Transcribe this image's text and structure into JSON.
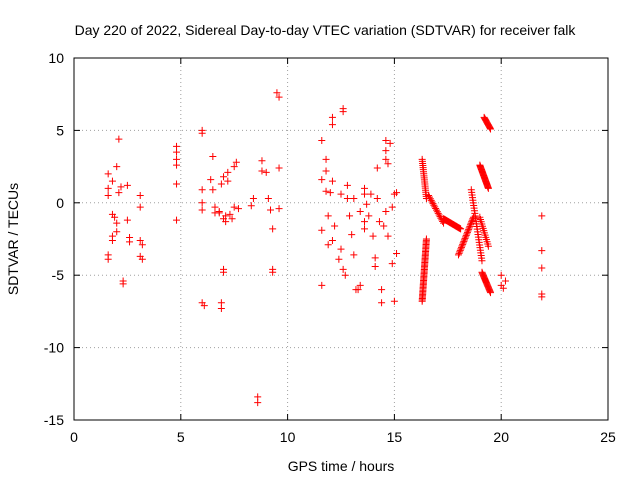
{
  "chart_data": {
    "type": "scatter",
    "title": "Day 220 of 2022, Sidereal Day-to-day VTEC variation (SDTVAR) for receiver falk",
    "xlabel": "GPS time / hours",
    "ylabel": "SDTVAR / TECUs",
    "xlim": [
      0,
      25
    ],
    "ylim": [
      -15,
      10
    ],
    "xticks": [
      0,
      5,
      10,
      15,
      20,
      25
    ],
    "yticks": [
      -15,
      -10,
      -5,
      0,
      5,
      10
    ],
    "grid": true,
    "marker": "plus",
    "color": "#ff0000",
    "series": [
      {
        "name": "SDTVAR",
        "points": [
          [
            1.6,
            2.0
          ],
          [
            1.6,
            1.0
          ],
          [
            1.6,
            0.5
          ],
          [
            1.6,
            -3.6
          ],
          [
            1.6,
            -3.9
          ],
          [
            1.8,
            1.5
          ],
          [
            1.8,
            -0.8
          ],
          [
            1.8,
            -2.3
          ],
          [
            1.8,
            -2.6
          ],
          [
            1.9,
            -1.0
          ],
          [
            2.0,
            2.5
          ],
          [
            2.0,
            -1.4
          ],
          [
            2.0,
            -2.0
          ],
          [
            2.1,
            4.4
          ],
          [
            2.1,
            0.7
          ],
          [
            2.2,
            1.1
          ],
          [
            2.3,
            -5.4
          ],
          [
            2.3,
            -5.6
          ],
          [
            2.5,
            1.2
          ],
          [
            2.5,
            -1.2
          ],
          [
            2.6,
            -2.4
          ],
          [
            2.6,
            -2.7
          ],
          [
            3.1,
            0.5
          ],
          [
            3.1,
            -0.3
          ],
          [
            3.1,
            -2.6
          ],
          [
            3.1,
            -3.7
          ],
          [
            3.2,
            -2.9
          ],
          [
            3.2,
            -3.9
          ],
          [
            4.8,
            3.9
          ],
          [
            4.8,
            3.5
          ],
          [
            4.8,
            3.0
          ],
          [
            4.8,
            2.6
          ],
          [
            4.8,
            1.3
          ],
          [
            4.8,
            -1.2
          ],
          [
            6.0,
            5.0
          ],
          [
            6.0,
            4.8
          ],
          [
            6.0,
            0.9
          ],
          [
            6.0,
            0.0
          ],
          [
            6.0,
            -0.5
          ],
          [
            6.0,
            -6.9
          ],
          [
            6.1,
            -7.1
          ],
          [
            6.4,
            1.6
          ],
          [
            6.5,
            3.2
          ],
          [
            6.5,
            0.9
          ],
          [
            6.6,
            -0.3
          ],
          [
            6.6,
            -0.7
          ],
          [
            6.8,
            -0.7
          ],
          [
            6.8,
            -0.6
          ],
          [
            6.9,
            1.3
          ],
          [
            6.9,
            -6.9
          ],
          [
            6.9,
            -7.3
          ],
          [
            7.0,
            -1.1
          ],
          [
            7.0,
            -4.6
          ],
          [
            7.0,
            -4.8
          ],
          [
            7.0,
            1.8
          ],
          [
            7.1,
            -0.9
          ],
          [
            7.1,
            -1.3
          ],
          [
            7.2,
            2.1
          ],
          [
            7.2,
            1.5
          ],
          [
            7.3,
            -0.8
          ],
          [
            7.4,
            -1.1
          ],
          [
            7.5,
            2.5
          ],
          [
            7.5,
            -0.3
          ],
          [
            7.6,
            2.8
          ],
          [
            7.7,
            -0.4
          ],
          [
            8.3,
            -0.2
          ],
          [
            8.4,
            0.3
          ],
          [
            8.6,
            -13.4
          ],
          [
            8.6,
            -13.8
          ],
          [
            8.8,
            2.9
          ],
          [
            8.8,
            2.2
          ],
          [
            9.0,
            2.1
          ],
          [
            9.1,
            0.3
          ],
          [
            9.2,
            -0.5
          ],
          [
            9.3,
            -1.8
          ],
          [
            9.3,
            -4.8
          ],
          [
            9.3,
            -4.6
          ],
          [
            9.5,
            7.6
          ],
          [
            9.6,
            7.3
          ],
          [
            9.6,
            2.4
          ],
          [
            9.6,
            -0.4
          ],
          [
            11.6,
            4.3
          ],
          [
            11.6,
            1.6
          ],
          [
            11.6,
            -1.9
          ],
          [
            11.6,
            -5.7
          ],
          [
            11.8,
            3.0
          ],
          [
            11.8,
            2.2
          ],
          [
            11.8,
            0.8
          ],
          [
            11.9,
            -0.9
          ],
          [
            11.9,
            -2.9
          ],
          [
            12.0,
            0.7
          ],
          [
            12.1,
            5.9
          ],
          [
            12.1,
            5.4
          ],
          [
            12.1,
            1.5
          ],
          [
            12.1,
            -2.6
          ],
          [
            12.2,
            -1.6
          ],
          [
            12.4,
            -3.9
          ],
          [
            12.5,
            0.6
          ],
          [
            12.5,
            -3.2
          ],
          [
            12.6,
            6.5
          ],
          [
            12.6,
            6.3
          ],
          [
            12.6,
            -4.6
          ],
          [
            12.7,
            -5.0
          ],
          [
            12.8,
            1.2
          ],
          [
            12.8,
            0.3
          ],
          [
            12.9,
            -0.9
          ],
          [
            13.0,
            -2.2
          ],
          [
            13.1,
            0.3
          ],
          [
            13.1,
            -3.6
          ],
          [
            13.2,
            -6.0
          ],
          [
            13.3,
            -6.0
          ],
          [
            13.4,
            -0.6
          ],
          [
            13.4,
            -5.7
          ],
          [
            13.6,
            1.0
          ],
          [
            13.6,
            0.6
          ],
          [
            13.6,
            -1.3
          ],
          [
            13.6,
            -1.8
          ],
          [
            13.7,
            -0.1
          ],
          [
            13.8,
            -0.9
          ],
          [
            13.9,
            0.6
          ],
          [
            14.0,
            -2.3
          ],
          [
            14.1,
            -3.8
          ],
          [
            14.1,
            -4.4
          ],
          [
            14.2,
            2.4
          ],
          [
            14.2,
            0.3
          ],
          [
            14.3,
            -1.3
          ],
          [
            14.4,
            -6.0
          ],
          [
            14.4,
            -6.9
          ],
          [
            14.5,
            -1.6
          ],
          [
            14.6,
            4.3
          ],
          [
            14.6,
            3.6
          ],
          [
            14.6,
            3.0
          ],
          [
            14.6,
            -0.6
          ],
          [
            14.7,
            2.7
          ],
          [
            14.7,
            -2.3
          ],
          [
            14.8,
            4.1
          ],
          [
            14.9,
            -0.3
          ],
          [
            14.9,
            -4.2
          ],
          [
            15.0,
            0.6
          ],
          [
            15.0,
            -6.8
          ],
          [
            15.1,
            -3.5
          ],
          [
            15.1,
            0.7
          ],
          [
            20.0,
            -5.0
          ],
          [
            20.1,
            -5.9
          ],
          [
            20.2,
            -5.4
          ],
          [
            20.0,
            -5.7
          ],
          [
            21.9,
            -0.9
          ],
          [
            21.9,
            -3.3
          ],
          [
            21.9,
            -4.5
          ],
          [
            21.9,
            -6.3
          ],
          [
            21.9,
            -6.5
          ]
        ],
        "clusters": [
          {
            "x_from": 16.3,
            "x_to": 16.5,
            "points": 46,
            "y_from": -6.8,
            "y_to": -2.5
          },
          {
            "x_from": 16.3,
            "x_to": 16.5,
            "points": 20,
            "y_from": 3.0,
            "y_to": 0.3
          },
          {
            "x_from": 16.6,
            "x_to": 17.3,
            "points": 18,
            "y_from": 0.5,
            "y_to": -1.4
          },
          {
            "x_from": 17.3,
            "x_to": 18.1,
            "points": 30,
            "y_from": -1.1,
            "y_to": -1.8
          },
          {
            "x_from": 18.0,
            "x_to": 18.7,
            "points": 26,
            "y_from": -3.6,
            "y_to": -1.0
          },
          {
            "x_from": 18.6,
            "x_to": 19.1,
            "points": 28,
            "y_from": 0.9,
            "y_to": -4.0
          },
          {
            "x_from": 19.0,
            "x_to": 19.4,
            "points": 28,
            "y_from": 2.6,
            "y_to": 1.0
          },
          {
            "x_from": 19.1,
            "x_to": 19.5,
            "points": 22,
            "y_from": -4.8,
            "y_to": -6.2
          },
          {
            "x_from": 19.2,
            "x_to": 19.5,
            "points": 14,
            "y_from": 5.9,
            "y_to": 5.1
          },
          {
            "x_from": 19.0,
            "x_to": 19.4,
            "points": 14,
            "y_from": -1.0,
            "y_to": -3.0
          }
        ]
      }
    ]
  }
}
